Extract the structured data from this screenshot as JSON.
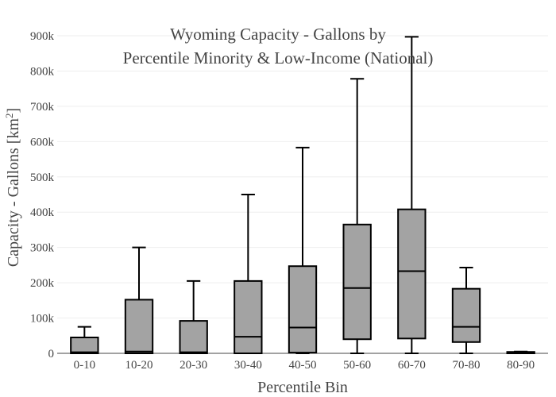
{
  "chart_data": {
    "type": "box",
    "title_lines": [
      "Wyoming Capacity - Gallons by",
      "Percentile Minority & Low-Income (National)"
    ],
    "xlabel": "Percentile Bin",
    "ylabel_main": "Capacity - Gallons  [km",
    "ylabel_sup": "2",
    "ylabel_end": "]",
    "ylim": [
      0,
      900000
    ],
    "yticks": [
      0,
      100000,
      200000,
      300000,
      400000,
      500000,
      600000,
      700000,
      800000,
      900000
    ],
    "ytick_labels": [
      "0",
      "100k",
      "200k",
      "300k",
      "400k",
      "500k",
      "600k",
      "700k",
      "800k",
      "900k"
    ],
    "grid": true,
    "colors": {
      "box_fill": "#a3a3a3",
      "box_stroke": "#000000",
      "grid": "#eeeeee",
      "text": "#444444"
    },
    "categories": [
      "0-10",
      "10-20",
      "20-30",
      "30-40",
      "40-50",
      "50-60",
      "60-70",
      "70-80",
      "80-90"
    ],
    "boxes": [
      {
        "category": "0-10",
        "min": 0,
        "q1": 0,
        "median": 3000,
        "q3": 45000,
        "max": 75000
      },
      {
        "category": "10-20",
        "min": 0,
        "q1": 0,
        "median": 5000,
        "q3": 152000,
        "max": 300000
      },
      {
        "category": "20-30",
        "min": 0,
        "q1": 0,
        "median": 3000,
        "q3": 92000,
        "max": 205000
      },
      {
        "category": "30-40",
        "min": 0,
        "q1": 0,
        "median": 47000,
        "q3": 205000,
        "max": 450000
      },
      {
        "category": "40-50",
        "min": 0,
        "q1": 2000,
        "median": 73000,
        "q3": 247000,
        "max": 583000
      },
      {
        "category": "50-60",
        "min": 0,
        "q1": 40000,
        "median": 185000,
        "q3": 365000,
        "max": 778000
      },
      {
        "category": "60-70",
        "min": 0,
        "q1": 42000,
        "median": 233000,
        "q3": 408000,
        "max": 897000
      },
      {
        "category": "70-80",
        "min": 0,
        "q1": 32000,
        "median": 75000,
        "q3": 183000,
        "max": 243000
      },
      {
        "category": "80-90",
        "min": 0,
        "q1": 0,
        "median": 3000,
        "q3": 4000,
        "max": 5000
      }
    ]
  }
}
